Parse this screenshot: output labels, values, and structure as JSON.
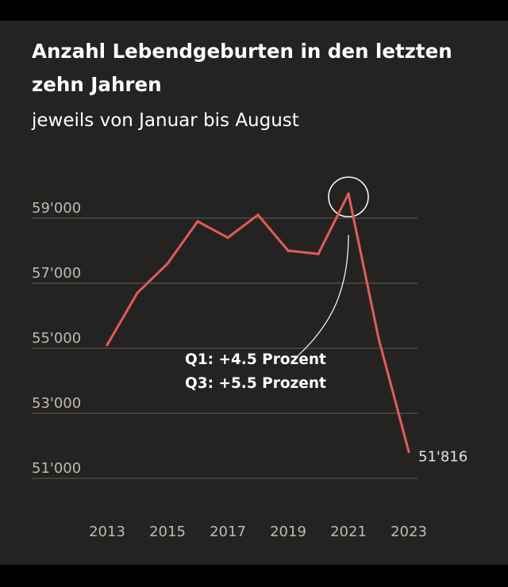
{
  "chart_data": {
    "type": "line",
    "title": "Anzahl Lebendgeburten in den letzten zehn Jahren",
    "subtitle": "jeweils von Januar bis August",
    "x": [
      2013,
      2014,
      2015,
      2016,
      2017,
      2018,
      2019,
      2020,
      2021,
      2022,
      2023
    ],
    "series": [
      {
        "values": [
          55100,
          56700,
          57600,
          58900,
          58400,
          59100,
          58000,
          57900,
          59750,
          55300,
          51816
        ],
        "color": "#e15b5b"
      }
    ],
    "xticks": [
      "2013",
      "2015",
      "2017",
      "2019",
      "2021",
      "2023"
    ],
    "yticks": [
      "59'000",
      "57'000",
      "55'000",
      "53'000",
      "51'000"
    ],
    "ytick_values": [
      59000,
      57000,
      55000,
      53000,
      51000
    ],
    "ylim": [
      51000,
      60000
    ],
    "grid": true,
    "end_label": "51'816",
    "highlight_year": 2021,
    "annotations": [
      "Q1: +4.5 Prozent",
      "Q3: +5.5 Prozent"
    ]
  }
}
